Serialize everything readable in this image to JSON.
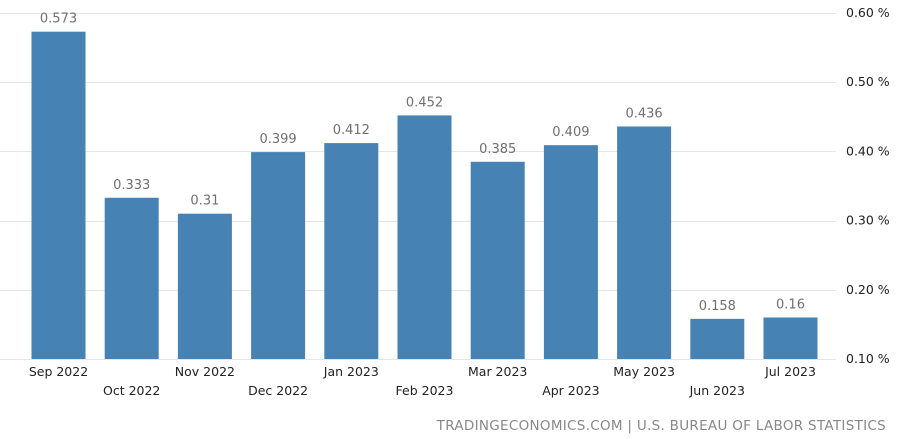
{
  "chart_data": {
    "type": "bar",
    "categories": [
      "Sep 2022",
      "Oct 2022",
      "Nov 2022",
      "Dec 2022",
      "Jan 2023",
      "Feb 2023",
      "Mar 2023",
      "Apr 2023",
      "May 2023",
      "Jun 2023",
      "Jul 2023"
    ],
    "values": [
      0.573,
      0.333,
      0.31,
      0.399,
      0.412,
      0.452,
      0.385,
      0.409,
      0.436,
      0.158,
      0.16
    ],
    "value_labels": [
      "0.573",
      "0.333",
      "0.31",
      "0.399",
      "0.412",
      "0.452",
      "0.385",
      "0.409",
      "0.436",
      "0.158",
      "0.16"
    ],
    "ylim": [
      0.1,
      0.6
    ],
    "y_ticks": [
      0.1,
      0.2,
      0.3,
      0.4,
      0.5,
      0.6
    ],
    "y_tick_labels": [
      "0.10 %",
      "0.20 %",
      "0.30 %",
      "0.40 %",
      "0.50 %",
      "0.60 %"
    ],
    "y_axis_side": "right",
    "category_labels_staggered": true,
    "grid": true,
    "bar_color": "#4682b4"
  },
  "source_text": "TRADINGECONOMICS.COM | U.S. BUREAU OF LABOR STATISTICS"
}
